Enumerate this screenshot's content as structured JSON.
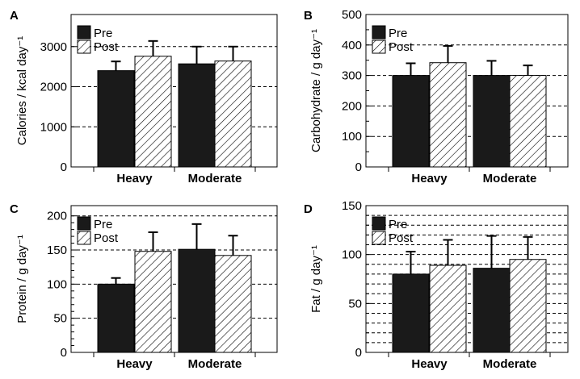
{
  "colors": {
    "pre": "#1a1a1a",
    "post_hatch": "#000000",
    "background": "#ffffff"
  },
  "legend": {
    "pre": "Pre",
    "post": "Post"
  },
  "chart_data": [
    {
      "panel": "A",
      "type": "bar",
      "ylabel": "Calories / kcal day⁻¹",
      "categories": [
        "Heavy",
        "Moderate"
      ],
      "ylim": [
        0,
        3800
      ],
      "yticks": [
        0,
        1000,
        2000,
        3000
      ],
      "gridlines": [
        1000,
        2000,
        3000
      ],
      "minor_ticks": [],
      "series": [
        {
          "name": "Pre",
          "values": [
            2400,
            2570
          ],
          "errors": [
            230,
            430
          ]
        },
        {
          "name": "Post",
          "values": [
            2760,
            2640
          ],
          "errors": [
            380,
            360
          ]
        }
      ],
      "legend_position": "top-left"
    },
    {
      "panel": "B",
      "type": "bar",
      "ylabel": "Carbohydrate / g day⁻¹",
      "categories": [
        "Heavy",
        "Moderate"
      ],
      "ylim": [
        0,
        500
      ],
      "yticks": [
        0,
        100,
        200,
        300,
        400,
        500
      ],
      "gridlines": [
        100,
        200,
        300,
        400
      ],
      "minor_ticks": [
        50,
        150,
        250,
        350,
        450
      ],
      "series": [
        {
          "name": "Pre",
          "values": [
            300,
            300
          ],
          "errors": [
            40,
            48
          ]
        },
        {
          "name": "Post",
          "values": [
            342,
            300
          ],
          "errors": [
            55,
            33
          ]
        }
      ],
      "legend_position": "top-left"
    },
    {
      "panel": "C",
      "type": "bar",
      "ylabel": "Protein / g day⁻¹",
      "categories": [
        "Heavy",
        "Moderate"
      ],
      "ylim": [
        0,
        215
      ],
      "yticks": [
        0,
        50,
        100,
        150,
        200
      ],
      "gridlines": [
        50,
        100,
        150,
        200
      ],
      "minor_ticks": [
        10,
        20,
        30,
        40,
        60,
        70,
        80,
        90,
        110,
        120,
        130,
        140,
        160,
        170,
        180,
        190
      ],
      "series": [
        {
          "name": "Pre",
          "values": [
            100,
            151
          ],
          "errors": [
            9,
            37
          ]
        },
        {
          "name": "Post",
          "values": [
            148,
            142
          ],
          "errors": [
            28,
            29
          ]
        }
      ],
      "legend_position": "top-left"
    },
    {
      "panel": "D",
      "type": "bar",
      "ylabel": "Fat / g day⁻¹",
      "categories": [
        "Heavy",
        "Moderate"
      ],
      "ylim": [
        0,
        150
      ],
      "yticks": [
        0,
        50,
        100,
        150
      ],
      "gridlines": [
        10,
        20,
        30,
        40,
        50,
        60,
        70,
        80,
        90,
        100,
        110,
        120,
        130,
        140
      ],
      "minor_ticks": [
        10,
        20,
        30,
        40,
        60,
        70,
        80,
        90,
        110,
        120,
        130,
        140
      ],
      "series": [
        {
          "name": "Pre",
          "values": [
            80,
            86
          ],
          "errors": [
            23,
            33
          ]
        },
        {
          "name": "Post",
          "values": [
            89,
            95
          ],
          "errors": [
            26,
            23
          ]
        }
      ],
      "legend_position": "top-left"
    }
  ]
}
